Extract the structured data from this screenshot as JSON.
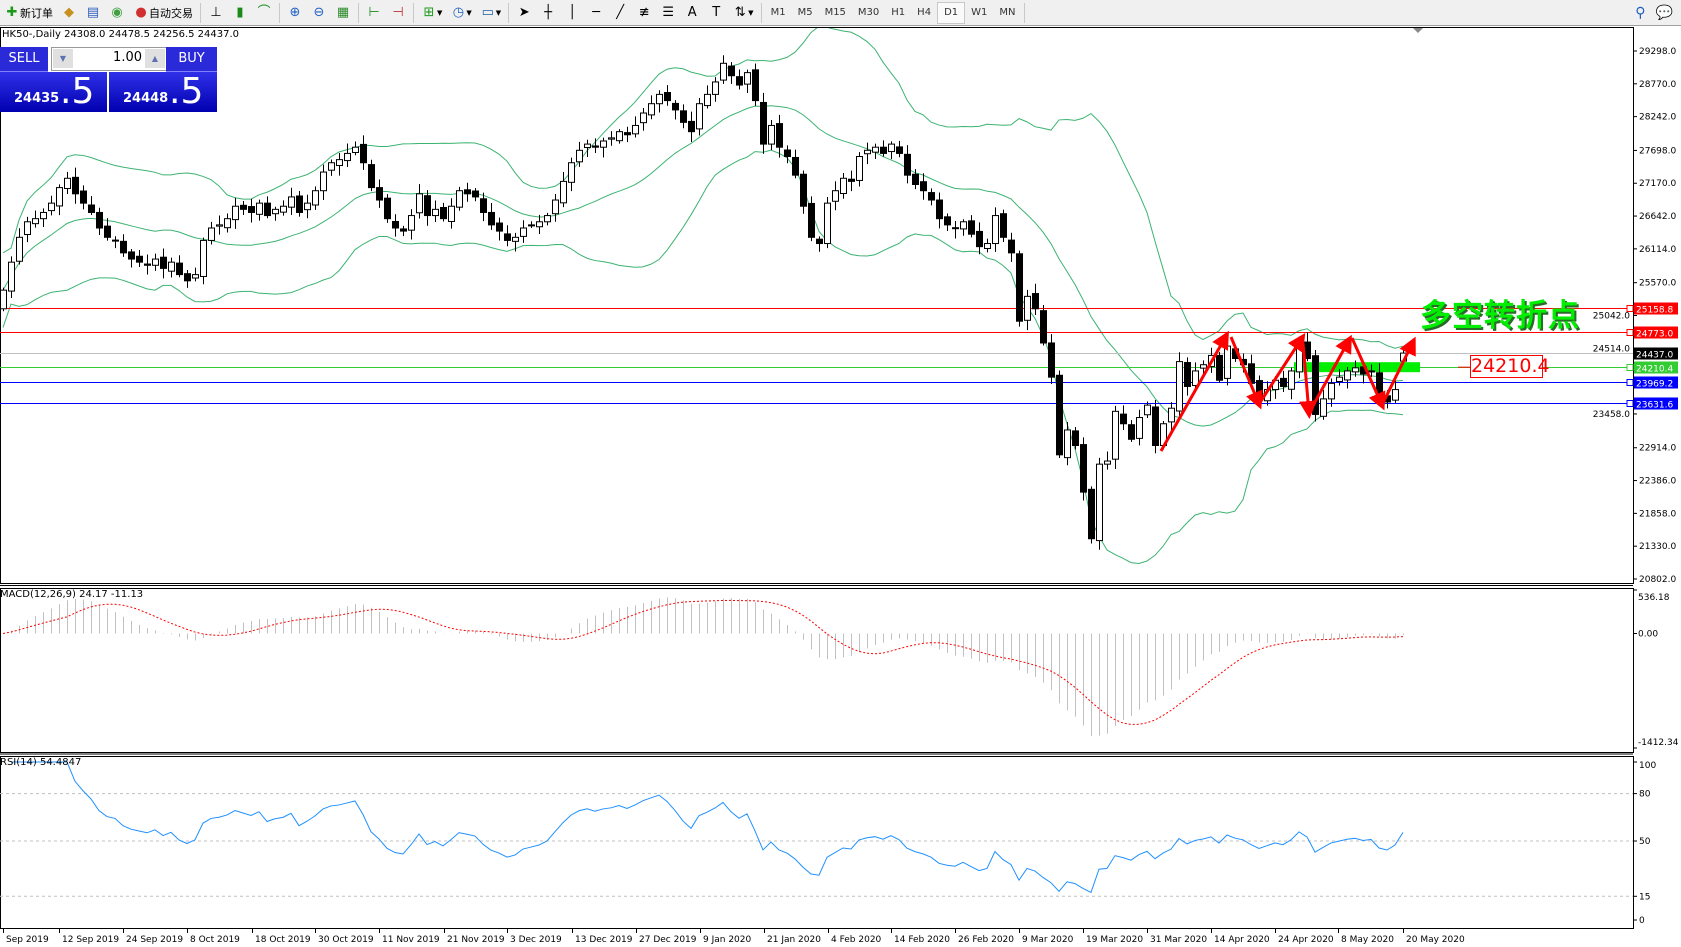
{
  "toolbar": {
    "new_order": "新订单",
    "auto_trading": "自动交易",
    "icons": [
      "new-order-icon",
      "market-watch-icon",
      "navigator-icon",
      "signals-icon",
      "auto-trading-icon",
      "bar-chart-icon",
      "candlestick-icon",
      "line-chart-icon",
      "zoom-in-icon",
      "zoom-out-icon",
      "tile-windows-icon",
      "chart-shift-icon",
      "auto-scroll-icon",
      "indicators-icon",
      "periods-icon",
      "templates-icon",
      "cursor-icon",
      "crosshair-icon",
      "vertical-line-icon",
      "horizontal-line-icon",
      "trendline-icon",
      "fibonacci-icon",
      "channel-icon",
      "text-icon",
      "text-label-icon",
      "arrows-icon",
      "search-icon",
      "chat-icon"
    ],
    "timeframes": [
      "M1",
      "M5",
      "M15",
      "M30",
      "H1",
      "H4",
      "D1",
      "W1",
      "MN"
    ],
    "active_timeframe": "D1"
  },
  "chart_info": "HK50-,Daily  24308.0 24478.5 24256.5 24437.0",
  "trade_panel": {
    "sell_label": "SELL",
    "buy_label": "BUY",
    "lot": "1.00",
    "sell_price_main": "24435",
    "sell_price_frac": ".5",
    "buy_price_main": "24448",
    "buy_price_frac": ".5"
  },
  "annotation": {
    "text": "多空转折点",
    "pivot_value": "24210.4",
    "text_color": "#00ee00",
    "arrow_color": "#ff0000",
    "zone_color": "#00ee00"
  },
  "chart_data": [
    {
      "type": "candlestick",
      "symbol": "HK50-",
      "timeframe": "Daily",
      "last_bar": {
        "open": 24308.0,
        "high": 24478.5,
        "low": 24256.5,
        "close": 24437.0
      },
      "close": [
        25450,
        25900,
        26300,
        26550,
        26600,
        26700,
        26850,
        27100,
        27250,
        27000,
        26850,
        26700,
        26450,
        26300,
        26250,
        26050,
        25950,
        25900,
        25850,
        25950,
        25800,
        25900,
        25700,
        25600,
        25700,
        26250,
        26450,
        26500,
        26600,
        26800,
        26750,
        26700,
        26850,
        26650,
        26750,
        26800,
        26950,
        26700,
        26850,
        27050,
        27350,
        27500,
        27550,
        27650,
        27750,
        27500,
        27100,
        26900,
        26600,
        26450,
        26400,
        26650,
        27000,
        26650,
        26750,
        26600,
        26800,
        27050,
        27000,
        26950,
        26700,
        26500,
        26400,
        26250,
        26300,
        26450,
        26500,
        26550,
        26650,
        26900,
        27200,
        27500,
        27700,
        27800,
        27750,
        27850,
        27900,
        28000,
        27950,
        28100,
        28300,
        28450,
        28600,
        28500,
        28350,
        28150,
        28000,
        28450,
        28600,
        28800,
        29100,
        28900,
        28750,
        28950,
        28500,
        27800,
        28100,
        27750,
        27600,
        27300,
        26800,
        26300,
        26200,
        26850,
        27050,
        27250,
        27200,
        27600,
        27700,
        27750,
        27650,
        27800,
        27650,
        27300,
        27150,
        27050,
        26900,
        26600,
        26500,
        26450,
        26550,
        26350,
        26150,
        26200,
        26650,
        26300,
        26050,
        24950,
        25350,
        25150,
        24600,
        24050,
        22800,
        23200,
        22950,
        22200,
        21450,
        22650,
        22700,
        23500,
        23300,
        23050,
        23400,
        23600,
        22950,
        23300,
        23550,
        24300,
        23900,
        24150,
        24250,
        24400,
        24000,
        24550,
        24350,
        24250,
        23950,
        23700,
        23850,
        24000,
        23900,
        24150,
        24600,
        24350,
        23450,
        23700,
        23950,
        24050,
        24150,
        24200,
        24100,
        24150,
        23750,
        23650,
        23850,
        24437
      ],
      "overlays": [
        "Bollinger Bands"
      ],
      "y_ticks": [
        "29298.0",
        "28770.0",
        "28242.0",
        "27698.0",
        "27170.0",
        "26642.0",
        "26114.0",
        "25570.0",
        "25042.0",
        "24514.0",
        "23458.0",
        "22914.0",
        "22386.0",
        "21858.0",
        "21330.0",
        "20802.0"
      ],
      "ylim": [
        20802.0,
        29298.0
      ],
      "horizontal_lines": [
        {
          "value": "25158.8",
          "color": "#ff0000"
        },
        {
          "value": "24773.0",
          "color": "#ff0000"
        },
        {
          "value": "24437.0",
          "color": "#000000",
          "line_color": "#c0c0c0"
        },
        {
          "value": "24210.4",
          "color": "#33cc33"
        },
        {
          "value": "23969.2",
          "color": "#0000ff"
        },
        {
          "value": "23631.6",
          "color": "#0000ff"
        }
      ],
      "band_color": "#3cb371"
    },
    {
      "type": "bar+line",
      "label": "MACD(12,26,9) 24.17 -11.13",
      "y_ticks": [
        "536.18",
        "0.00",
        "-1412.34"
      ],
      "ylim": [
        -1412.34,
        536.18
      ],
      "histogram_color": "#c0c0c0",
      "signal_color": "#ff0000"
    },
    {
      "type": "line",
      "label": "RSI(14) 54.4847",
      "y_ticks": [
        "100",
        "80",
        "50",
        "15",
        "0"
      ],
      "ylim": [
        0,
        100
      ],
      "levels": [
        80,
        50,
        15
      ],
      "line_color": "#1e90ff"
    }
  ],
  "x_labels": [
    "Sep 2019",
    "12 Sep 2019",
    "24 Sep 2019",
    "8 Oct 2019",
    "18 Oct 2019",
    "30 Oct 2019",
    "11 Nov 2019",
    "21 Nov 2019",
    "3 Dec 2019",
    "13 Dec 2019",
    "27 Dec 2019",
    "9 Jan 2020",
    "21 Jan 2020",
    "4 Feb 2020",
    "14 Feb 2020",
    "26 Feb 2020",
    "9 Mar 2020",
    "19 Mar 2020",
    "31 Mar 2020",
    "14 Apr 2020",
    "24 Apr 2020",
    "8 May 2020",
    "20 May 2020"
  ]
}
